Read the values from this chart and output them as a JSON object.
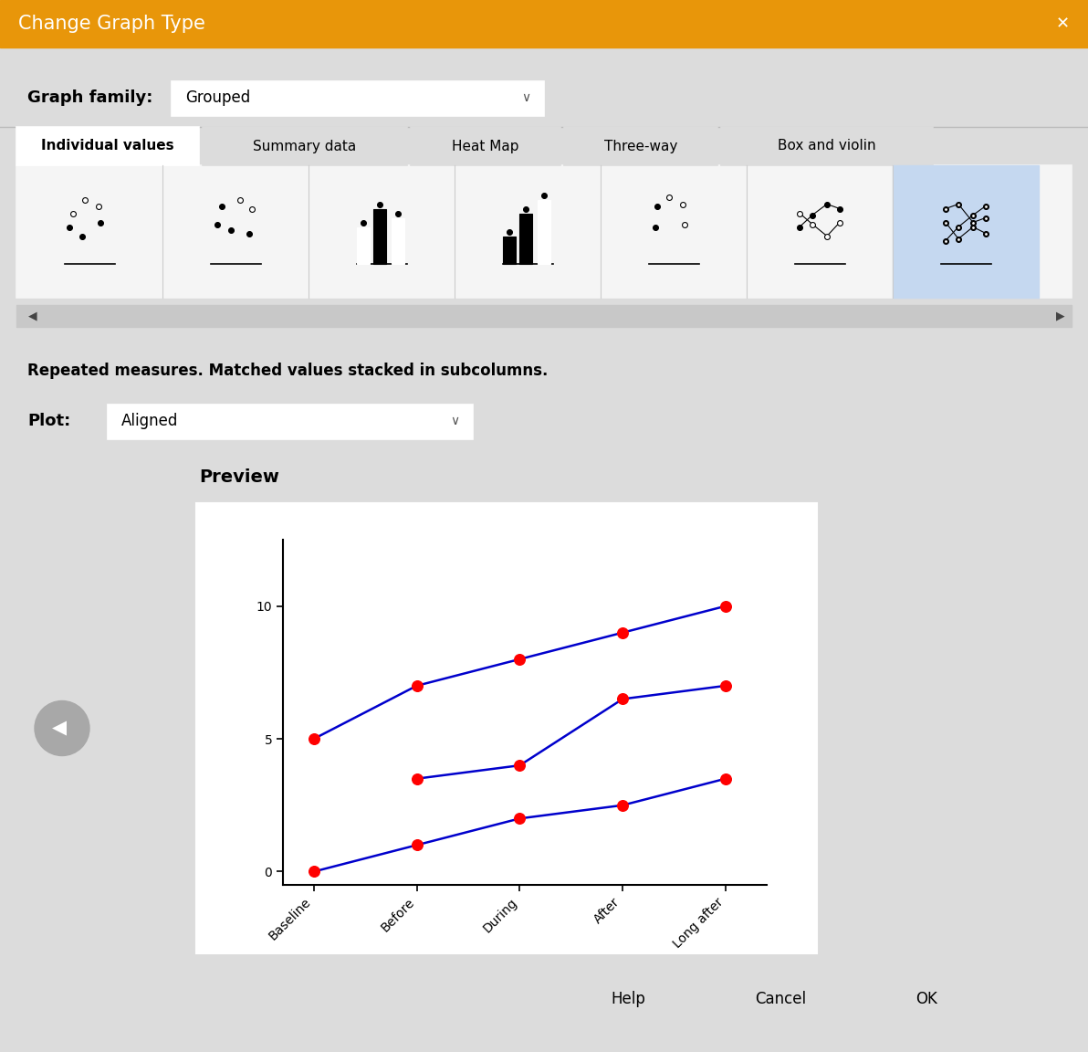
{
  "bg_color": "#dcdcdc",
  "dialog_title": "Change Graph Type",
  "title_bar_color": "#e8960a",
  "preview_title": "Preview",
  "graph_family_label": "Graph family:",
  "graph_family_value": "Grouped",
  "plot_label": "Plot:",
  "plot_value": "Aligned",
  "repeated_measures_text": "Repeated measures. Matched values stacked in subcolumns.",
  "tab_labels": [
    "Individual values",
    "Summary data",
    "Heat Map",
    "Three-way",
    "Box and violin"
  ],
  "x_labels": [
    "Baseline",
    "Before",
    "During",
    "After",
    "Long after"
  ],
  "x_positions": [
    0,
    1,
    2,
    3,
    4
  ],
  "lines": [
    {
      "x": [
        0,
        1,
        2,
        3,
        4
      ],
      "y": [
        5,
        7,
        8,
        9,
        10
      ]
    },
    {
      "x": [
        1,
        2,
        3,
        4
      ],
      "y": [
        3.5,
        4.0,
        6.5,
        7.0
      ]
    },
    {
      "x": [
        0,
        1,
        2,
        3,
        4
      ],
      "y": [
        0,
        1,
        2,
        2.5,
        3.5
      ]
    }
  ],
  "line_color": "#0000cc",
  "dot_color": "#ff0000",
  "dot_size": 70,
  "line_width": 1.8,
  "y_ticks": [
    0,
    5,
    10
  ],
  "y_min": -0.5,
  "y_max": 12.5,
  "preview_bg": "#ffffff",
  "button_labels": [
    "Help",
    "Cancel",
    "OK"
  ],
  "selected_icon_bg": "#c5d8f0",
  "icon_panel_bg": "#f5f5f5",
  "scrollbar_bg": "#c8c8c8",
  "tab_active_bg": "#ffffff",
  "tab_inactive_bg": "#dcdcdc"
}
